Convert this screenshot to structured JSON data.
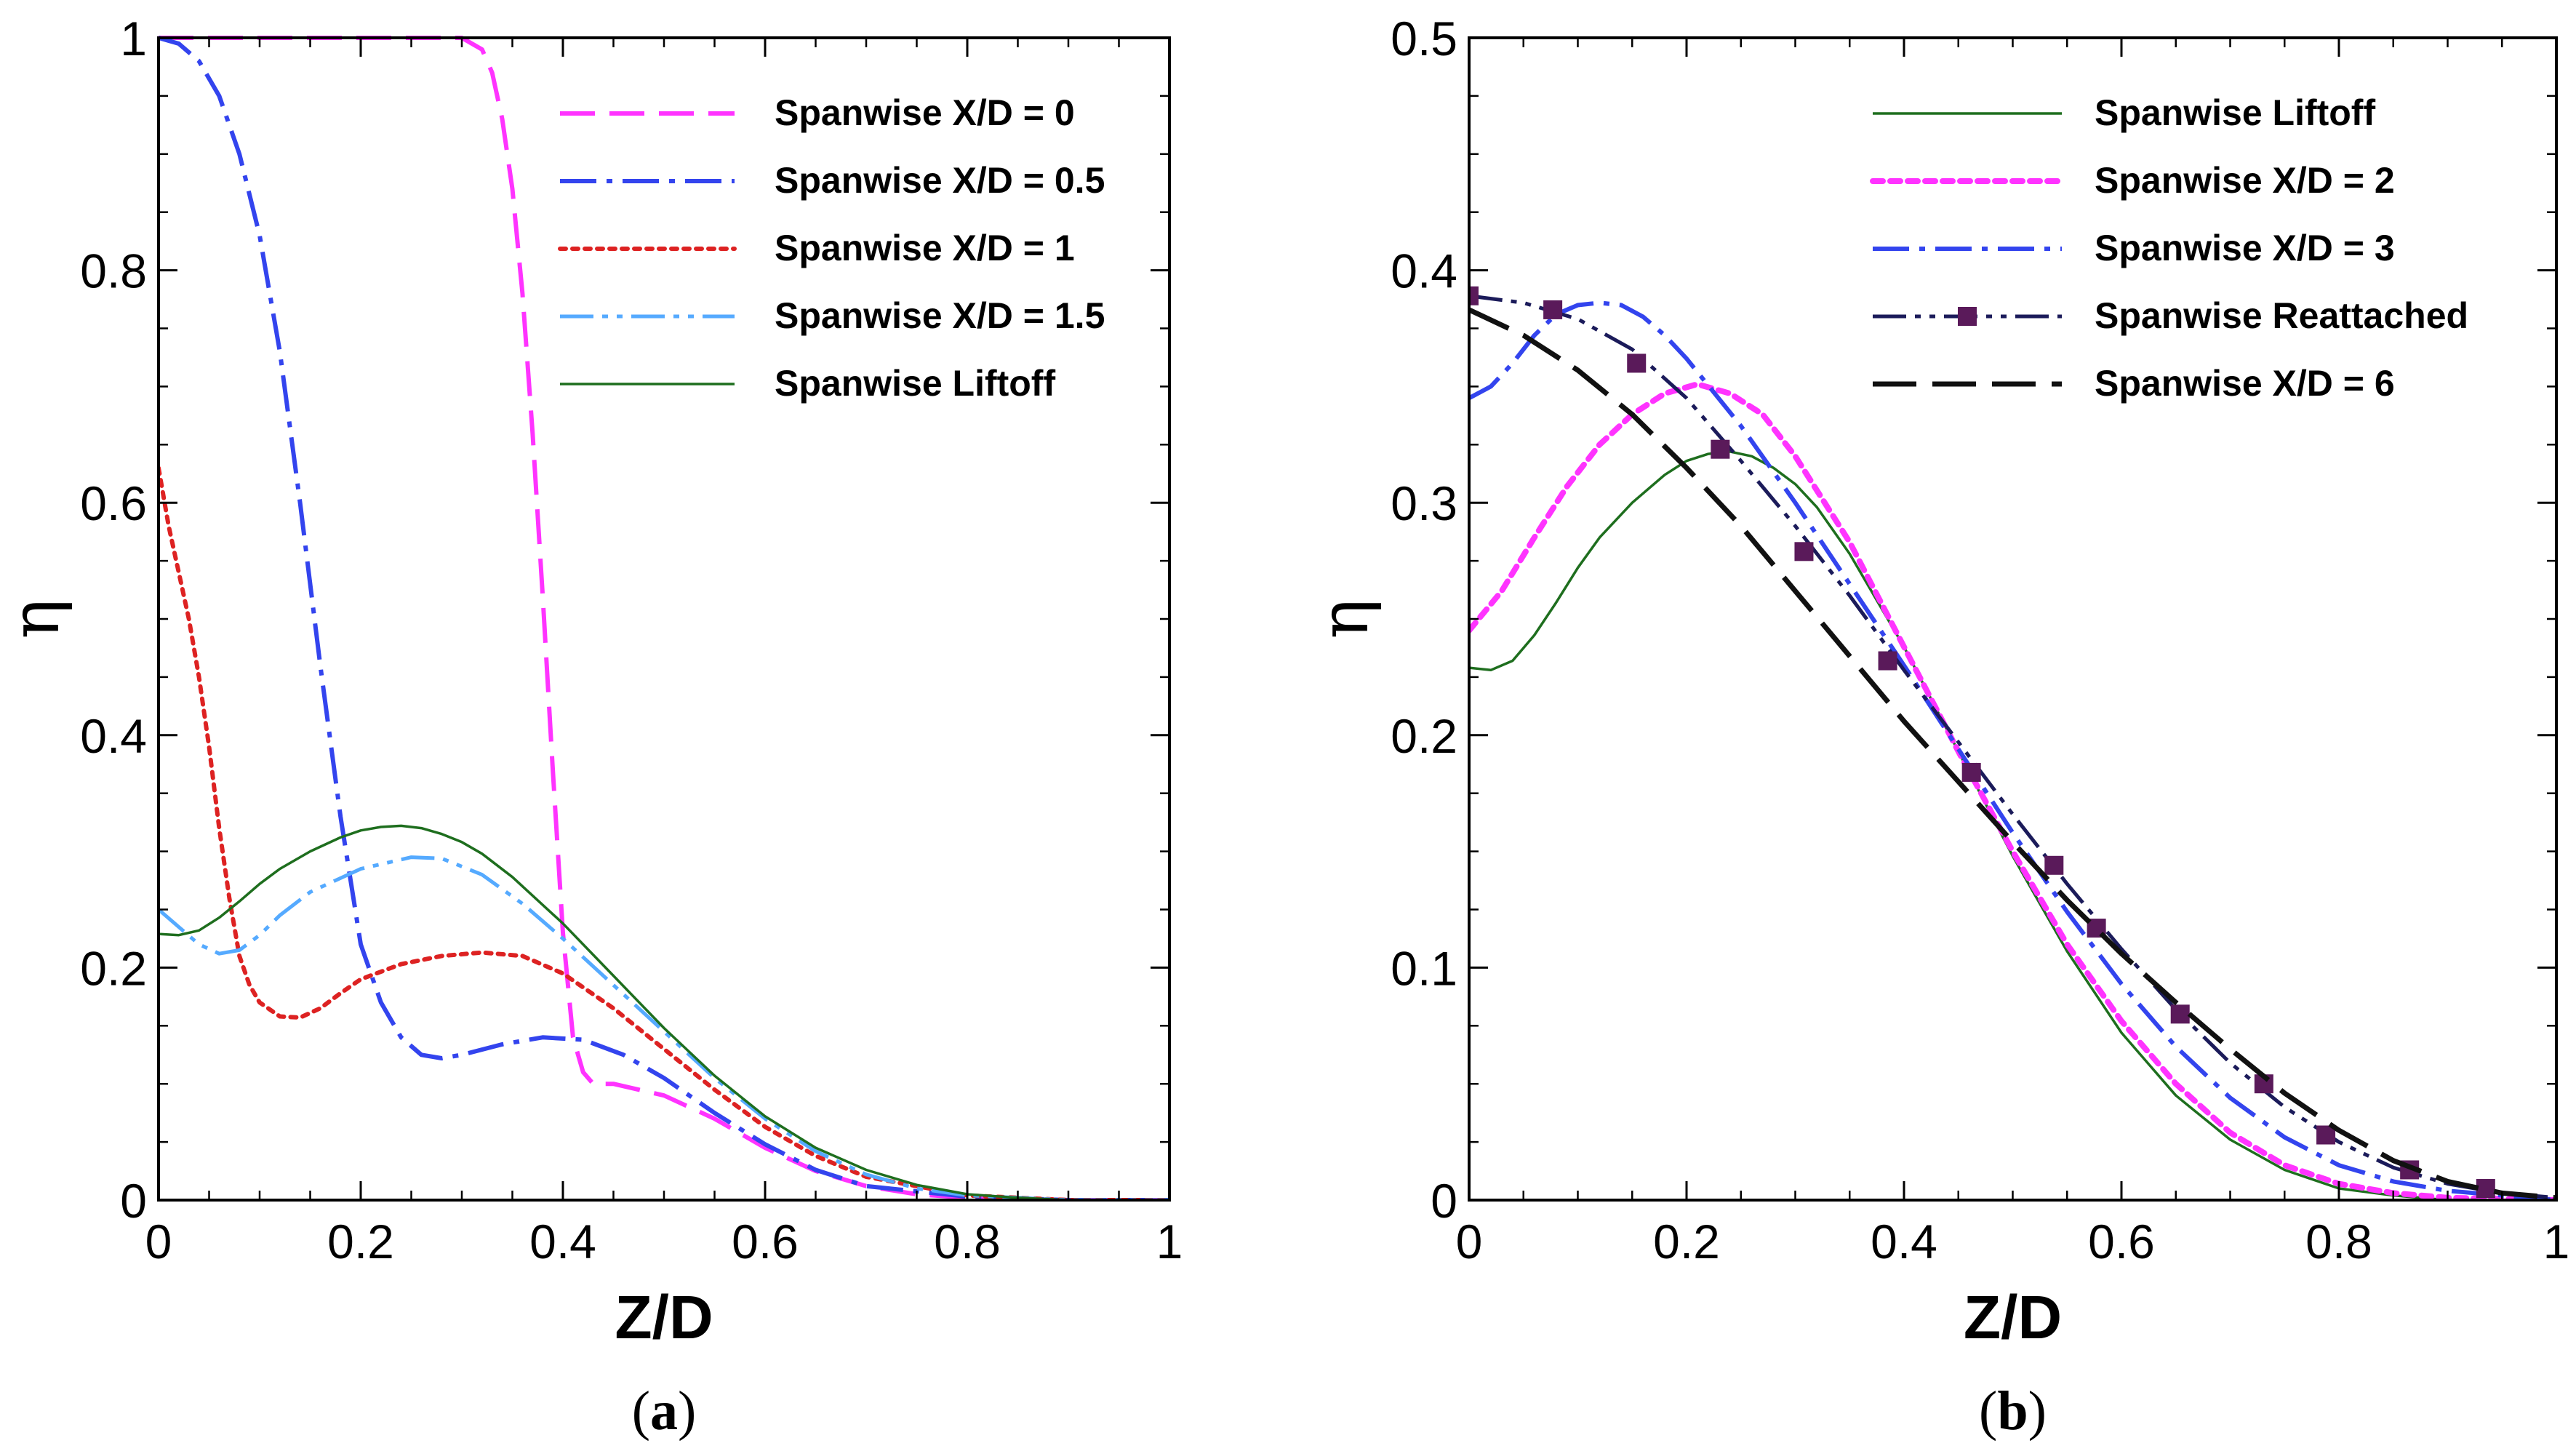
{
  "chart_data": [
    {
      "panel_label": {
        "open": "(",
        "letter": "a",
        "close": ")"
      },
      "type": "line",
      "title": "",
      "xlabel": "Z/D",
      "ylabel": "η",
      "xlim": [
        0,
        1
      ],
      "ylim": [
        0,
        1
      ],
      "xticks": [
        0,
        0.2,
        0.4,
        0.6,
        0.8,
        1
      ],
      "xtick_labels": [
        "0",
        "0.2",
        "0.4",
        "0.6",
        "0.8",
        "1"
      ],
      "yticks": [
        0,
        0.2,
        0.4,
        0.6,
        0.8,
        1
      ],
      "ytick_labels": [
        "0",
        "0.2",
        "0.4",
        "0.6",
        "0.8",
        "1"
      ],
      "legend_position": "top-right",
      "series": [
        {
          "name": "Spanwise X/D = 0",
          "color": "#ff33ff",
          "dash": "dash",
          "marker": "none",
          "x": [
            0,
            0.05,
            0.1,
            0.15,
            0.2,
            0.25,
            0.3,
            0.32,
            0.33,
            0.34,
            0.35,
            0.36,
            0.37,
            0.38,
            0.39,
            0.4,
            0.41,
            0.42,
            0.43,
            0.44,
            0.45,
            0.5,
            0.55,
            0.6,
            0.65,
            0.7,
            0.75,
            0.8,
            0.9,
            1.0
          ],
          "y": [
            1.0,
            1.0,
            1.0,
            1.0,
            1.0,
            1.0,
            1.0,
            0.99,
            0.97,
            0.93,
            0.87,
            0.78,
            0.66,
            0.52,
            0.37,
            0.23,
            0.14,
            0.11,
            0.1,
            0.1,
            0.1,
            0.09,
            0.07,
            0.045,
            0.025,
            0.012,
            0.005,
            0.002,
            0.0,
            0.0
          ]
        },
        {
          "name": "Spanwise X/D = 0.5",
          "color": "#3344ee",
          "dash": "dashdot",
          "marker": "none",
          "x": [
            0,
            0.02,
            0.04,
            0.06,
            0.08,
            0.1,
            0.12,
            0.14,
            0.16,
            0.18,
            0.2,
            0.22,
            0.24,
            0.26,
            0.28,
            0.3,
            0.34,
            0.38,
            0.42,
            0.46,
            0.5,
            0.55,
            0.6,
            0.65,
            0.7,
            0.8,
            0.9,
            1.0
          ],
          "y": [
            1.0,
            0.995,
            0.98,
            0.95,
            0.9,
            0.83,
            0.73,
            0.6,
            0.46,
            0.33,
            0.22,
            0.17,
            0.14,
            0.125,
            0.122,
            0.125,
            0.134,
            0.14,
            0.138,
            0.125,
            0.105,
            0.075,
            0.048,
            0.026,
            0.012,
            0.003,
            0.0,
            0.0
          ]
        },
        {
          "name": "Spanwise X/D = 1",
          "color": "#dd2222",
          "dash": "dot",
          "marker": "none",
          "x": [
            0,
            0.01,
            0.02,
            0.03,
            0.04,
            0.05,
            0.06,
            0.07,
            0.08,
            0.09,
            0.1,
            0.12,
            0.14,
            0.16,
            0.18,
            0.2,
            0.24,
            0.28,
            0.32,
            0.36,
            0.4,
            0.45,
            0.5,
            0.55,
            0.6,
            0.65,
            0.7,
            0.8,
            0.9,
            1.0
          ],
          "y": [
            0.63,
            0.58,
            0.54,
            0.5,
            0.45,
            0.39,
            0.32,
            0.26,
            0.21,
            0.185,
            0.17,
            0.158,
            0.157,
            0.165,
            0.178,
            0.19,
            0.203,
            0.21,
            0.213,
            0.21,
            0.195,
            0.165,
            0.13,
            0.095,
            0.063,
            0.038,
            0.02,
            0.004,
            0.0,
            0.0
          ]
        },
        {
          "name": "Spanwise X/D = 1.5",
          "color": "#55aaff",
          "dash": "dashdotdot",
          "marker": "none",
          "x": [
            0,
            0.02,
            0.04,
            0.06,
            0.08,
            0.1,
            0.12,
            0.15,
            0.2,
            0.25,
            0.28,
            0.32,
            0.36,
            0.4,
            0.45,
            0.5,
            0.55,
            0.6,
            0.65,
            0.7,
            0.75,
            0.8,
            0.9,
            1.0
          ],
          "y": [
            0.25,
            0.235,
            0.22,
            0.212,
            0.215,
            0.228,
            0.245,
            0.265,
            0.285,
            0.295,
            0.294,
            0.28,
            0.255,
            0.225,
            0.185,
            0.145,
            0.105,
            0.07,
            0.042,
            0.022,
            0.01,
            0.004,
            0.0,
            0.0
          ]
        },
        {
          "name": "Spanwise Liftoff",
          "color": "#1e6e1e",
          "dash": "solid",
          "marker": "none",
          "x": [
            0,
            0.02,
            0.04,
            0.06,
            0.08,
            0.1,
            0.12,
            0.15,
            0.18,
            0.2,
            0.22,
            0.24,
            0.26,
            0.28,
            0.3,
            0.32,
            0.35,
            0.4,
            0.45,
            0.5,
            0.55,
            0.6,
            0.65,
            0.7,
            0.75,
            0.8,
            0.85,
            0.9,
            1.0
          ],
          "y": [
            0.229,
            0.228,
            0.232,
            0.243,
            0.257,
            0.272,
            0.285,
            0.3,
            0.312,
            0.318,
            0.321,
            0.322,
            0.32,
            0.315,
            0.308,
            0.298,
            0.278,
            0.238,
            0.193,
            0.148,
            0.107,
            0.072,
            0.045,
            0.026,
            0.013,
            0.005,
            0.002,
            0.0,
            0.0
          ]
        }
      ]
    },
    {
      "panel_label": {
        "open": "(",
        "letter": "b",
        "close": ")"
      },
      "type": "line",
      "title": "",
      "xlabel": "Z/D",
      "ylabel": "η",
      "xlim": [
        0,
        1
      ],
      "ylim": [
        0,
        0.5
      ],
      "xticks": [
        0,
        0.2,
        0.4,
        0.6,
        0.8,
        1
      ],
      "xtick_labels": [
        "0",
        "0.2",
        "0.4",
        "0.6",
        "0.8",
        "1"
      ],
      "yticks": [
        0,
        0.1,
        0.2,
        0.3,
        0.4,
        0.5
      ],
      "ytick_labels": [
        "0",
        "0.1",
        "0.2",
        "0.3",
        "0.4",
        "0.5"
      ],
      "legend_position": "top-right",
      "series": [
        {
          "name": "Spanwise Liftoff",
          "color": "#1e6e1e",
          "dash": "solid",
          "marker": "none",
          "x": [
            0,
            0.02,
            0.04,
            0.06,
            0.08,
            0.1,
            0.12,
            0.15,
            0.18,
            0.2,
            0.22,
            0.24,
            0.26,
            0.28,
            0.3,
            0.32,
            0.35,
            0.4,
            0.45,
            0.5,
            0.55,
            0.6,
            0.65,
            0.7,
            0.75,
            0.8,
            0.85,
            0.9,
            1.0
          ],
          "y": [
            0.229,
            0.228,
            0.232,
            0.243,
            0.257,
            0.272,
            0.285,
            0.3,
            0.312,
            0.318,
            0.321,
            0.322,
            0.32,
            0.315,
            0.308,
            0.298,
            0.278,
            0.238,
            0.193,
            0.148,
            0.107,
            0.072,
            0.045,
            0.026,
            0.013,
            0.005,
            0.002,
            0.0,
            0.0
          ]
        },
        {
          "name": "Spanwise X/D = 2",
          "color": "#ff33ff",
          "dash": "dot-heavy",
          "marker": "none",
          "x": [
            0,
            0.03,
            0.06,
            0.09,
            0.12,
            0.15,
            0.18,
            0.21,
            0.24,
            0.27,
            0.3,
            0.35,
            0.4,
            0.45,
            0.5,
            0.55,
            0.6,
            0.65,
            0.7,
            0.75,
            0.8,
            0.85,
            0.9,
            1.0
          ],
          "y": [
            0.245,
            0.262,
            0.285,
            0.307,
            0.325,
            0.338,
            0.347,
            0.351,
            0.347,
            0.338,
            0.32,
            0.283,
            0.238,
            0.193,
            0.15,
            0.11,
            0.077,
            0.05,
            0.029,
            0.015,
            0.007,
            0.003,
            0.001,
            0.0
          ]
        },
        {
          "name": "Spanwise X/D = 3",
          "color": "#3344ee",
          "dash": "dashdot",
          "marker": "none",
          "x": [
            0,
            0.02,
            0.04,
            0.06,
            0.08,
            0.1,
            0.12,
            0.14,
            0.16,
            0.18,
            0.2,
            0.25,
            0.3,
            0.35,
            0.4,
            0.45,
            0.5,
            0.55,
            0.6,
            0.65,
            0.7,
            0.75,
            0.8,
            0.85,
            0.9,
            1.0
          ],
          "y": [
            0.345,
            0.35,
            0.36,
            0.372,
            0.381,
            0.385,
            0.386,
            0.385,
            0.38,
            0.372,
            0.362,
            0.333,
            0.3,
            0.265,
            0.23,
            0.194,
            0.158,
            0.124,
            0.093,
            0.066,
            0.044,
            0.027,
            0.015,
            0.008,
            0.004,
            0.0
          ]
        },
        {
          "name": "Spanwise Reattached",
          "color": "#1b1b5a",
          "dash": "dashdotdot",
          "marker": "square",
          "marker_color": "#5a1a5a",
          "x": [
            0,
            0.05,
            0.1,
            0.15,
            0.2,
            0.25,
            0.3,
            0.35,
            0.4,
            0.45,
            0.5,
            0.55,
            0.6,
            0.65,
            0.7,
            0.75,
            0.8,
            0.85,
            0.9,
            0.95,
            1.0
          ],
          "y": [
            0.389,
            0.386,
            0.379,
            0.366,
            0.345,
            0.318,
            0.29,
            0.26,
            0.228,
            0.197,
            0.166,
            0.136,
            0.108,
            0.082,
            0.059,
            0.04,
            0.025,
            0.014,
            0.007,
            0.003,
            0.001
          ],
          "marker_x": [
            0,
            0.077,
            0.154,
            0.231,
            0.308,
            0.385,
            0.462,
            0.538,
            0.577,
            0.654,
            0.731,
            0.788,
            0.865,
            0.935
          ],
          "marker_y": [
            0.389,
            0.383,
            0.36,
            0.323,
            0.279,
            0.232,
            0.184,
            0.144,
            0.117,
            0.08,
            0.05,
            0.028,
            0.013,
            0.005
          ]
        },
        {
          "name": "Spanwise X/D = 6",
          "color": "#111111",
          "dash": "longdash",
          "marker": "none",
          "x": [
            0,
            0.05,
            0.1,
            0.15,
            0.2,
            0.25,
            0.3,
            0.35,
            0.4,
            0.45,
            0.5,
            0.55,
            0.6,
            0.65,
            0.7,
            0.75,
            0.8,
            0.85,
            0.9,
            0.95,
            1.0
          ],
          "y": [
            0.383,
            0.372,
            0.357,
            0.338,
            0.315,
            0.29,
            0.262,
            0.234,
            0.206,
            0.18,
            0.154,
            0.129,
            0.106,
            0.085,
            0.065,
            0.046,
            0.03,
            0.017,
            0.008,
            0.003,
            0.001
          ]
        }
      ]
    }
  ]
}
